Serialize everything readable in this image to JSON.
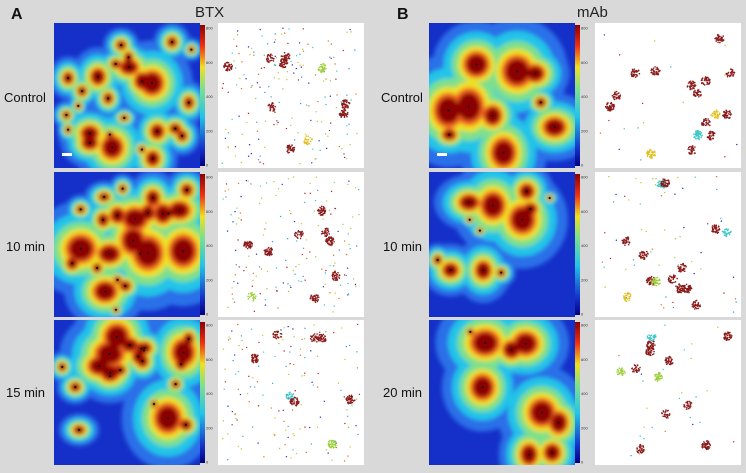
{
  "figure": {
    "panels": [
      {
        "letter": "A",
        "title": "BTX",
        "rows": [
          "Control",
          "10 min",
          "15 min"
        ]
      },
      {
        "letter": "B",
        "title": "mAb",
        "rows": [
          "Control",
          "10 min",
          "20 min"
        ]
      }
    ],
    "colorbar_ticks": [
      "800",
      "600",
      "400",
      "200",
      "0"
    ],
    "colors": {
      "background": "#d9d9d9",
      "heat_low": "#1530c8",
      "heat_mid": "#22c4e8",
      "heat_high": "#f0e020",
      "heat_peak": "#8b0000",
      "dot_dense": "#8b1a1a",
      "dot_sparse": "#2a2ad0"
    }
  }
}
